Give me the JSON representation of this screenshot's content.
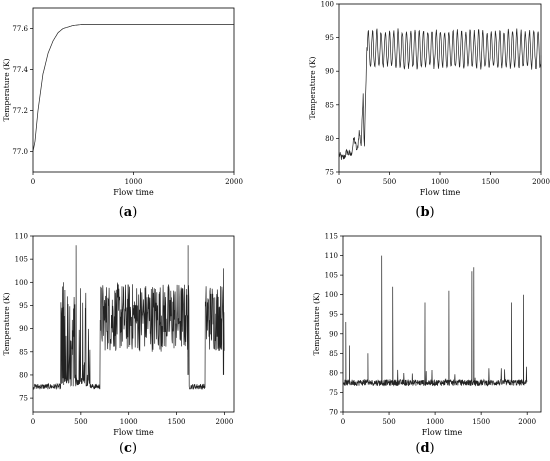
{
  "chart_data": [
    {
      "panel": "(a)",
      "label_letter": "a",
      "type": "line",
      "xlabel": "Flow time",
      "ylabel": "Temperature (K)",
      "xlim": [
        0,
        2000
      ],
      "ylim": [
        76.9,
        77.7
      ],
      "xticks": [
        0,
        1000,
        2000
      ],
      "yticks": [
        77.0,
        77.2,
        77.4,
        77.6
      ],
      "ytick_labels": [
        "77.0",
        "77.2",
        "77.4",
        "77.6"
      ],
      "grid": false,
      "series": [
        {
          "generator": "saturation",
          "points": [
            [
              0,
              77.0
            ],
            [
              20,
              77.05
            ],
            [
              50,
              77.2
            ],
            [
              100,
              77.38
            ],
            [
              150,
              77.48
            ],
            [
              200,
              77.54
            ],
            [
              250,
              77.58
            ],
            [
              300,
              77.6
            ],
            [
              400,
              77.615
            ],
            [
              500,
              77.62
            ],
            [
              1000,
              77.62
            ],
            [
              2000,
              77.62
            ]
          ]
        }
      ]
    },
    {
      "panel": "(b)",
      "label_letter": "b",
      "type": "line",
      "xlabel": "Flow time",
      "ylabel": "Temperature (K)",
      "xlim": [
        0,
        2000
      ],
      "ylim": [
        75,
        100
      ],
      "xticks": [
        0,
        500,
        1000,
        1500,
        2000
      ],
      "yticks": [
        75,
        80,
        85,
        90,
        95,
        100
      ],
      "grid": false,
      "series": [
        {
          "generator": "periodic",
          "points": [
            [
              0,
              77.5
            ],
            [
              40,
              77
            ],
            [
              80,
              78
            ],
            [
              120,
              77.5
            ],
            [
              150,
              80
            ],
            [
              180,
              78
            ],
            [
              200,
              81
            ],
            [
              220,
              79
            ],
            [
              240,
              87
            ],
            [
              250,
              78
            ],
            [
              260,
              85
            ],
            [
              270,
              90
            ],
            [
              280,
              96
            ],
            [
              300,
              93
            ],
            [
              1000,
              93
            ],
            [
              2000,
              93
            ]
          ],
          "oscillation": {
            "start": 280,
            "mean": 93,
            "amplitude": 3
          }
        }
      ]
    },
    {
      "panel": "(c)",
      "label_letter": "c",
      "type": "line",
      "xlabel": "Flow time",
      "ylabel": "Temperature (K)",
      "xlim": [
        0,
        2100
      ],
      "ylim": [
        72,
        110
      ],
      "xticks": [
        0,
        500,
        1000,
        1500,
        2000
      ],
      "yticks": [
        75,
        80,
        85,
        90,
        95,
        100,
        105,
        110
      ],
      "grid": false,
      "series": [
        {
          "generator": "segmented_noise",
          "segments": [
            [
              0,
              290,
              "low"
            ],
            [
              290,
              600,
              "burst"
            ],
            [
              600,
              700,
              "low"
            ],
            [
              700,
              1630,
              "high"
            ],
            [
              1630,
              1800,
              "low"
            ],
            [
              1800,
              2000,
              "high"
            ]
          ],
          "peaks": [
            [
              450,
              108
            ],
            [
              1620,
              108
            ],
            [
              320,
              100
            ],
            [
              1990,
              103
            ]
          ],
          "baseline": 77.5,
          "high_band": [
            85,
            100
          ]
        }
      ]
    },
    {
      "panel": "(d)",
      "label_letter": "d",
      "type": "line",
      "xlabel": "Flow time",
      "ylabel": "Temperature (K)",
      "xlim": [
        0,
        2150
      ],
      "ylim": [
        70,
        115
      ],
      "xticks": [
        0,
        500,
        1000,
        1500,
        2000
      ],
      "yticks": [
        70,
        75,
        80,
        85,
        90,
        95,
        100,
        105,
        110,
        115
      ],
      "grid": false,
      "series": [
        {
          "generator": "spikes",
          "baseline": 77.5,
          "spikes": [
            [
              30,
              93
            ],
            [
              70,
              87
            ],
            [
              270,
              85
            ],
            [
              420,
              110
            ],
            [
              540,
              102
            ],
            [
              890,
              98
            ],
            [
              1150,
              101
            ],
            [
              1400,
              106
            ],
            [
              1420,
              107
            ],
            [
              1830,
              98
            ],
            [
              1960,
              100
            ]
          ]
        }
      ]
    }
  ]
}
